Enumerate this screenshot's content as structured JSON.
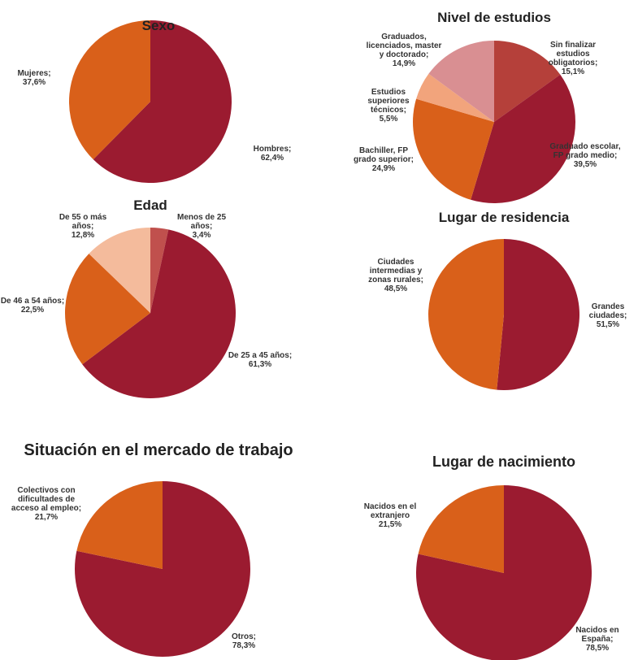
{
  "chart_data": [
    {
      "type": "pie",
      "title": "Sexo",
      "categories": [
        "Hombres;",
        "Mujeres;"
      ],
      "values": [
        62.4,
        37.6
      ],
      "value_labels": [
        "62,4%",
        "37,6%"
      ],
      "colors": [
        "#9b1b30",
        "#d9601a"
      ]
    },
    {
      "type": "pie",
      "title": "Nivel de estudios",
      "categories": [
        "Sin finalizar estudios obligatorios;",
        "Graduado escolar, FP grado medio;",
        "Bachiller, FP grado superior;",
        "Estudios superiores técnicos;",
        "Graduados, licenciados, master y doctorado;"
      ],
      "values": [
        15.1,
        39.5,
        24.9,
        5.5,
        14.9
      ],
      "value_labels": [
        "15,1%",
        "39,5%",
        "24,9%",
        "5,5%",
        "14,9%"
      ],
      "colors": [
        "#b5403a",
        "#9b1b30",
        "#d9601a",
        "#f2a47c",
        "#d98f92"
      ]
    },
    {
      "type": "pie",
      "title": "Edad",
      "categories": [
        "Menos de 25 años;",
        "De 25 a 45 años;",
        "De 46 a 54 años;",
        "De 55 o más años;"
      ],
      "values": [
        3.4,
        61.3,
        22.5,
        12.8
      ],
      "value_labels": [
        "3,4%",
        "61,3%",
        "22,5%",
        "12,8%"
      ],
      "colors": [
        "#c0504d",
        "#9b1b30",
        "#d9601a",
        "#f4bb9c"
      ]
    },
    {
      "type": "pie",
      "title": "Lugar de residencia",
      "categories": [
        "Grandes ciudades;",
        "Ciudades intermedias y zonas rurales;"
      ],
      "values": [
        51.5,
        48.5
      ],
      "value_labels": [
        "51,5%",
        "48,5%"
      ],
      "colors": [
        "#9b1b30",
        "#d9601a"
      ]
    },
    {
      "type": "pie",
      "title": "Situación en el mercado de trabajo",
      "categories": [
        "Otros;",
        "Colectivos con dificultades de acceso al empleo;"
      ],
      "values": [
        78.3,
        21.7
      ],
      "value_labels": [
        "78,3%",
        "21,7%"
      ],
      "colors": [
        "#9b1b30",
        "#d9601a"
      ]
    },
    {
      "type": "pie",
      "title": "Lugar de nacimiento",
      "categories": [
        "Nacidos en España;",
        "Nacidos en el extranjero"
      ],
      "values": [
        78.5,
        21.5
      ],
      "value_labels": [
        "78,5%",
        "21,5%"
      ],
      "colors": [
        "#9b1b30",
        "#d9601a"
      ]
    }
  ]
}
